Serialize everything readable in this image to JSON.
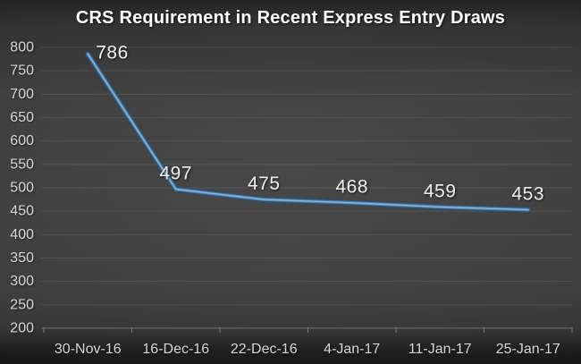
{
  "title": "CRS Requirement in Recent Express Entry Draws",
  "chart_data": {
    "type": "line",
    "title": "CRS Requirement in Recent Express Entry Draws",
    "categories": [
      "30-Nov-16",
      "16-Dec-16",
      "22-Dec-16",
      "4-Jan-17",
      "11-Jan-17",
      "25-Jan-17"
    ],
    "series": [
      {
        "name": "CRS Requirement",
        "values": [
          786,
          497,
          475,
          468,
          459,
          453
        ],
        "data_labels": [
          "786",
          "497",
          "475",
          "468",
          "459",
          "453"
        ],
        "label_positions": [
          "right",
          "above",
          "above",
          "above",
          "above",
          "above"
        ]
      }
    ],
    "xlabel": "",
    "ylabel": "",
    "ylim": [
      200,
      800
    ],
    "yticks": [
      800,
      750,
      700,
      650,
      600,
      550,
      500,
      450,
      400,
      350,
      300,
      250,
      200
    ],
    "grid": true,
    "legend": false,
    "colors": {
      "background": "#3e3e3e",
      "line": "#4e82ad",
      "line_highlight": "#93bbd9",
      "line_shadow": "#2d4f70",
      "gridline": "rgba(255,255,255,0.10)",
      "axis_line": "#6f6f6f",
      "tick": "#7a7a7a",
      "axis_text": "#d8d8d8",
      "data_label_text": "#f1f1f1",
      "title_text": "#ffffff"
    }
  }
}
